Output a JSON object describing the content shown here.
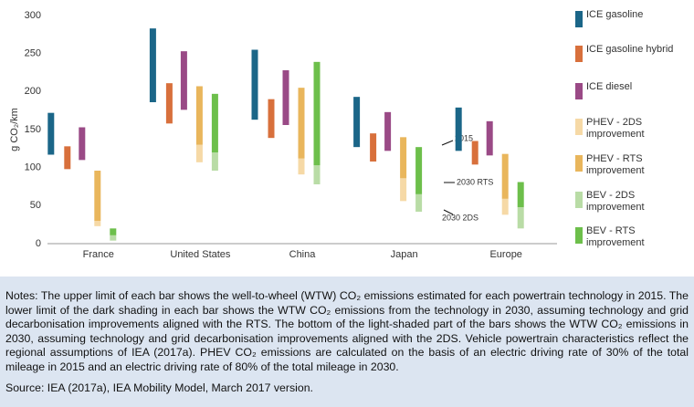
{
  "chart_data": {
    "type": "floating-bar",
    "y_label": "g CO₂/km",
    "categories": [
      "France",
      "United States",
      "China",
      "Japan",
      "Europe"
    ],
    "ylim": [
      0,
      300
    ],
    "yticks": [
      0,
      50,
      100,
      150,
      200,
      250,
      300
    ],
    "series": [
      {
        "name": "ICE gasoline",
        "color": "#1b6688",
        "high": [
          172,
          283,
          255,
          193,
          179
        ],
        "low": [
          117,
          186,
          163,
          127,
          122
        ]
      },
      {
        "name": "ICE gasoline hybrid",
        "color": "#d8703c",
        "high": [
          128,
          211,
          190,
          145,
          135
        ],
        "low": [
          98,
          158,
          139,
          108,
          104
        ]
      },
      {
        "name": "ICE diesel",
        "color": "#9a4a86",
        "high": [
          153,
          253,
          228,
          173,
          161
        ],
        "low": [
          110,
          176,
          156,
          122,
          116
        ]
      },
      {
        "name": "PHEV - 2DS improvement",
        "color": "#f6d9a6",
        "high": [
          30,
          130,
          112,
          86,
          59
        ],
        "low": [
          23,
          107,
          91,
          56,
          38
        ]
      },
      {
        "name": "PHEV - RTS improvement",
        "color": "#e9b65c",
        "high": [
          96,
          207,
          205,
          140,
          118
        ],
        "low": [
          30,
          130,
          112,
          86,
          59
        ]
      },
      {
        "name": "BEV - 2DS improvement",
        "color": "#b9dca6",
        "high": [
          11,
          120,
          103,
          65,
          48
        ],
        "low": [
          4,
          96,
          78,
          42,
          20
        ]
      },
      {
        "name": "BEV - RTS improvement",
        "color": "#6dbf4b",
        "high": [
          20,
          197,
          239,
          127,
          81
        ],
        "low": [
          11,
          120,
          103,
          65,
          48
        ]
      }
    ],
    "annotations": [
      "2015",
      "2030 RTS",
      "2030 2DS"
    ]
  },
  "notes": "Notes: The upper limit of each bar shows the well-to-wheel (WTW) CO₂ emissions estimated for each powertrain technology in 2015. The lower limit of the dark shading in each bar shows the WTW CO₂ emissions from the technology in 2030, assuming technology and grid decarbonisation improvements aligned with the RTS. The bottom of the light-shaded part of the bars shows the WTW CO₂ emissions in 2030, assuming technology and grid decarbonisation improvements aligned with the 2DS. Vehicle powertrain characteristics reflect the regional assumptions of IEA (2017a). PHEV CO₂ emissions are calculated on the basis of an electric driving rate of 30% of the total mileage in 2015 and an electric driving rate of 80% of the total mileage in 2030.",
  "source": "Source: IEA (2017a), IEA Mobility Model, March 2017 version."
}
